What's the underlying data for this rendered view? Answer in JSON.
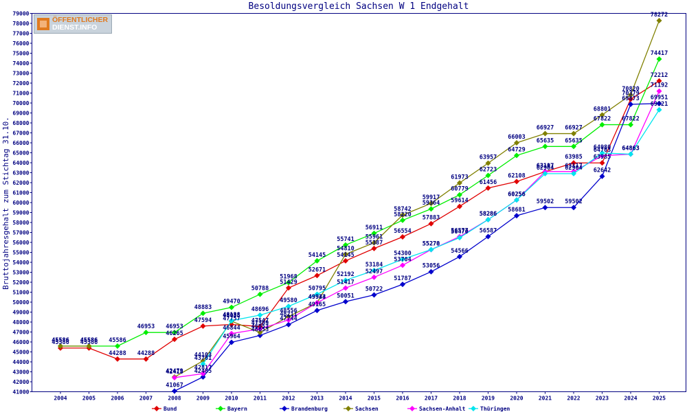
{
  "logo": {
    "line1": "ÖFFENTLICHER",
    "line2": "DIENST.INFO"
  },
  "chart_data": {
    "type": "line",
    "title": "Besoldungsvergleich Sachsen W 1 Endgehalt",
    "ylabel": "Bruttojahresgehalt zum Stichtag 31.10.",
    "xlabel": "",
    "ylim": [
      41000,
      79000
    ],
    "ytick_step": 1000,
    "grid": false,
    "legend_position": "bottom",
    "categories": [
      "2004",
      "2005",
      "2006",
      "2007",
      "2008",
      "2009",
      "2010",
      "2011",
      "2012",
      "2013",
      "2014",
      "2015",
      "2016",
      "2017",
      "2018",
      "2019",
      "2020",
      "2021",
      "2022",
      "2023",
      "2024",
      "2025"
    ],
    "series": [
      {
        "name": "Bund",
        "color": "#e00000",
        "values": [
          45386,
          45386,
          44288,
          44288,
          46265,
          47594,
          47757,
          47547,
          51429,
          52671,
          54145,
          55387,
          56554,
          57883,
          59614,
          61456,
          62108,
          63107,
          63985,
          63985,
          70379,
          72212
        ]
      },
      {
        "name": "Bayern",
        "color": "#00ee00",
        "values": [
          45586,
          45586,
          45586,
          46953,
          46953,
          48883,
          49470,
          50788,
          51968,
          54145,
          55741,
          56911,
          58220,
          59364,
          60779,
          62723,
          64729,
          65635,
          65635,
          67822,
          67822,
          74417
        ]
      },
      {
        "name": "Brandenburg",
        "color": "#0000cc",
        "values": [
          null,
          null,
          null,
          null,
          41067,
          42485,
          45964,
          46653,
          47744,
          49165,
          50051,
          50722,
          51787,
          53056,
          54566,
          56587,
          58681,
          59502,
          59502,
          62642,
          69873,
          69951
        ]
      },
      {
        "name": "Sachsen",
        "color": "#808000",
        "values": [
          45586,
          45586,
          null,
          null,
          42479,
          44103,
          48085,
          46953,
          48556,
          49934,
          54810,
          55961,
          58742,
          59917,
          61973,
          63957,
          66003,
          66927,
          66927,
          68801,
          70820,
          78272
        ]
      },
      {
        "name": "Sachsen-Anhalt",
        "color": "#ff00ff",
        "values": [
          null,
          null,
          null,
          null,
          42418,
          42817,
          46844,
          47309,
          48211,
          49943,
          51417,
          52497,
          53704,
          55270,
          56577,
          58286,
          60256,
          63117,
          63117,
          64703,
          64863,
          71192
        ]
      },
      {
        "name": "Thüringen",
        "color": "#00e5ee",
        "values": [
          null,
          null,
          null,
          null,
          null,
          43781,
          48138,
          48696,
          49580,
          50795,
          52192,
          53184,
          54300,
          55278,
          56470,
          58286,
          60256,
          62904,
          62904,
          64980,
          64863,
          69321
        ]
      }
    ]
  }
}
